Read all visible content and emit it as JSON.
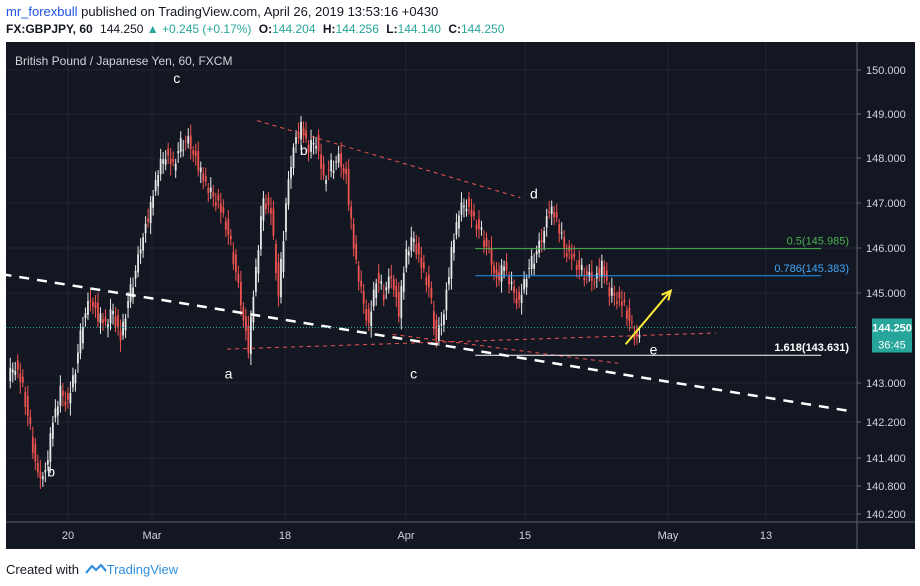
{
  "header": {
    "username": "mr_forexbull",
    "published_text": " published on TradingView.com, April 26, 2019 13:53:16 +0430",
    "symbol": "FX:GBPJPY, 60",
    "last": "144.250",
    "change_arrow": "▲",
    "change": "+0.245 (+0.17%)",
    "o_label": "O:",
    "o_value": "144.204",
    "h_label": "H:",
    "h_value": "144.256",
    "l_label": "L:",
    "l_value": "144.140",
    "c_label": "C:",
    "c_value": "144.250"
  },
  "footer": {
    "created_with": "Created with",
    "brand": "TradingView"
  },
  "chart_data": {
    "type": "candlestick",
    "title": "British Pound / Japanese Yen, 60, FXCM",
    "ylim": [
      140.0,
      150.4
    ],
    "y_ticks": [
      "150.000",
      "149.000",
      "148.000",
      "147.000",
      "146.000",
      "145.000",
      "143.000",
      "142.200",
      "141.400",
      "140.800",
      "140.200"
    ],
    "x_ticks": [
      "20",
      "Mar",
      "18",
      "Apr",
      "15",
      "May",
      "13"
    ],
    "last_price_label": "144.250",
    "countdown_label": "36:45",
    "price_path": [
      [
        0,
        143.1
      ],
      [
        1,
        143.4
      ],
      [
        2,
        142.9
      ],
      [
        3,
        142.0
      ],
      [
        4,
        141.0
      ],
      [
        5,
        141.1
      ],
      [
        6,
        142.2
      ],
      [
        7,
        142.8
      ],
      [
        8,
        142.6
      ],
      [
        9,
        143.3
      ],
      [
        10,
        144.4
      ],
      [
        11,
        144.9
      ],
      [
        12,
        144.5
      ],
      [
        13,
        144.3
      ],
      [
        14,
        144.6
      ],
      [
        15,
        144.0
      ],
      [
        16,
        144.8
      ],
      [
        17,
        145.5
      ],
      [
        18,
        146.3
      ],
      [
        19,
        146.9
      ],
      [
        20,
        147.7
      ],
      [
        21,
        148.1
      ],
      [
        22,
        147.8
      ],
      [
        23,
        148.3
      ],
      [
        24,
        148.4
      ],
      [
        25,
        148.0
      ],
      [
        26,
        147.5
      ],
      [
        27,
        147.2
      ],
      [
        28,
        147.0
      ],
      [
        29,
        146.5
      ],
      [
        30,
        145.8
      ],
      [
        31,
        144.8
      ],
      [
        32,
        143.8
      ],
      [
        33,
        145.5
      ],
      [
        34,
        147.1
      ],
      [
        35,
        146.8
      ],
      [
        36,
        144.9
      ],
      [
        37,
        147.0
      ],
      [
        38,
        148.3
      ],
      [
        39,
        148.7
      ],
      [
        40,
        148.2
      ],
      [
        41,
        148.4
      ],
      [
        42,
        147.5
      ],
      [
        43,
        147.8
      ],
      [
        44,
        148.0
      ],
      [
        45,
        147.6
      ],
      [
        46,
        146.0
      ],
      [
        47,
        145.0
      ],
      [
        48,
        144.3
      ],
      [
        49,
        145.3
      ],
      [
        50,
        145.0
      ],
      [
        51,
        145.4
      ],
      [
        52,
        144.6
      ],
      [
        53,
        145.9
      ],
      [
        54,
        146.2
      ],
      [
        55,
        145.6
      ],
      [
        56,
        145.1
      ],
      [
        57,
        144.0
      ],
      [
        58,
        144.6
      ],
      [
        59,
        145.9
      ],
      [
        60,
        146.8
      ],
      [
        61,
        147.0
      ],
      [
        62,
        146.6
      ],
      [
        63,
        146.3
      ],
      [
        64,
        145.9
      ],
      [
        65,
        145.3
      ],
      [
        66,
        145.6
      ],
      [
        67,
        145.1
      ],
      [
        68,
        144.8
      ],
      [
        69,
        145.4
      ],
      [
        70,
        145.8
      ],
      [
        71,
        146.2
      ],
      [
        72,
        146.9
      ],
      [
        73,
        146.6
      ],
      [
        74,
        146.0
      ],
      [
        75,
        145.8
      ],
      [
        76,
        145.5
      ],
      [
        77,
        145.4
      ],
      [
        78,
        145.3
      ],
      [
        79,
        145.6
      ],
      [
        80,
        145.0
      ],
      [
        81,
        144.9
      ],
      [
        82,
        144.7
      ],
      [
        83,
        144.2
      ],
      [
        84,
        144.0
      ]
    ],
    "lines": [
      {
        "name": "trend-white",
        "style": "dashed",
        "color": "#ffffff",
        "points": [
          [
            -1,
            145.42
          ],
          [
            112,
            142.42
          ]
        ]
      },
      {
        "name": "red-upper",
        "style": "dashed",
        "color": "#ef5350",
        "points": [
          [
            33,
            148.85
          ],
          [
            68,
            147.12
          ]
        ]
      },
      {
        "name": "red-lower",
        "style": "dashed",
        "color": "#ef5350",
        "points": [
          [
            29,
            143.77
          ],
          [
            94,
            144.13
          ]
        ]
      },
      {
        "name": "red-channel",
        "style": "dashed",
        "color": "#ef5350",
        "points": [
          [
            51,
            144.1
          ],
          [
            81,
            143.45
          ]
        ]
      },
      {
        "name": "fib-0.5",
        "style": "solid",
        "color": "#4caf50",
        "points": [
          [
            62,
            145.985
          ],
          [
            108,
            145.985
          ]
        ]
      },
      {
        "name": "fib-0.786",
        "style": "solid",
        "color": "#2196f3",
        "points": [
          [
            62,
            145.383
          ],
          [
            108,
            145.383
          ]
        ]
      },
      {
        "name": "fib-1.618",
        "style": "solid",
        "color": "#ffffff",
        "points": [
          [
            62,
            143.631
          ],
          [
            108,
            143.631
          ]
        ]
      }
    ],
    "fib_labels": [
      "0.5(145.985)",
      "0.786(145.383)",
      "1.618(143.631)"
    ],
    "wave_labels": [
      "b",
      "c",
      "b",
      "a",
      "c",
      "d",
      "e"
    ],
    "projection_arrow": {
      "color": "#ffeb3b",
      "from": [
        82,
        143.88
      ],
      "to": [
        88,
        145.05
      ]
    }
  }
}
